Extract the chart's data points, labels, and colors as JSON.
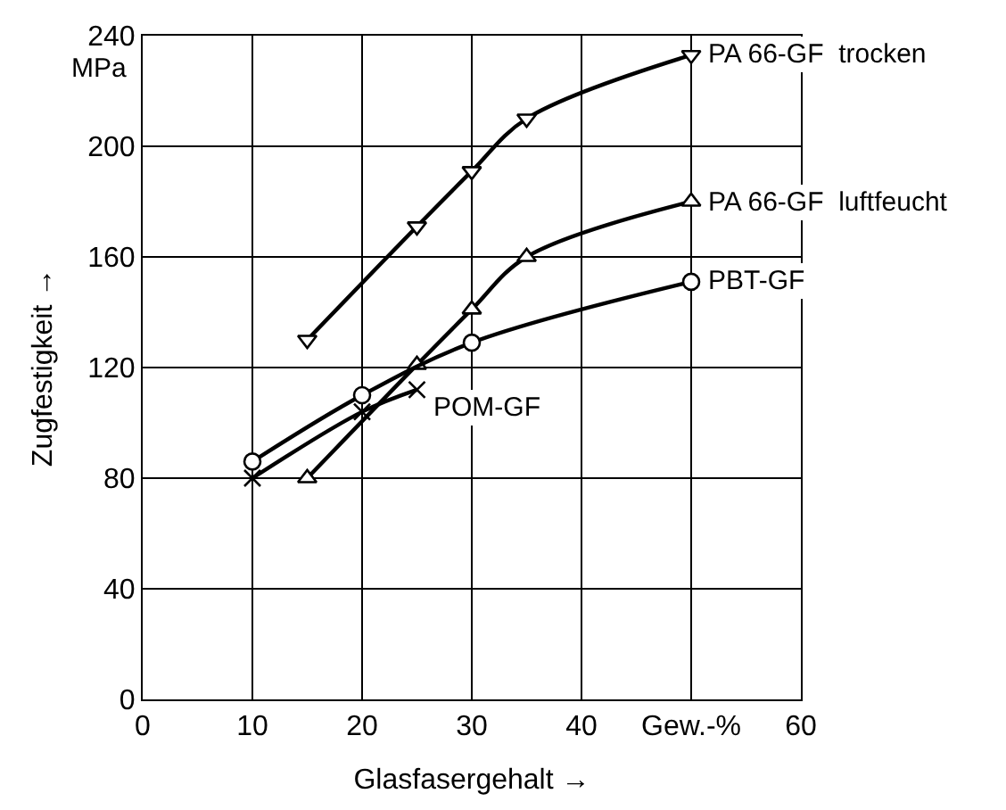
{
  "chart_data": {
    "type": "line",
    "xlabel": "Glasfasergehalt →",
    "ylabel": "Zugfestigkeit →",
    "xlim": [
      0,
      60
    ],
    "xticks": [
      0,
      10,
      20,
      30,
      40,
      {
        "value": 50,
        "label": "Gew.-%"
      },
      60
    ],
    "ylim": [
      0,
      240
    ],
    "yticks": [
      0,
      40,
      80,
      120,
      160,
      200,
      240
    ],
    "grid": true,
    "legend": false,
    "annotations": [
      "MPa"
    ],
    "series": [
      {
        "name": "PA 66-GF  trocken",
        "color": "#000000",
        "marker": "triangle-down",
        "x": [
          15,
          25,
          30,
          35,
          50
        ],
        "values": [
          130,
          171,
          191,
          210,
          233
        ]
      },
      {
        "name": "PA 66-GF  luftfeucht",
        "color": "#000000",
        "marker": "triangle-up",
        "x": [
          15,
          25,
          30,
          35,
          50
        ],
        "values": [
          80,
          121,
          141,
          160,
          180
        ]
      },
      {
        "name": "PBT-GF",
        "color": "#000000",
        "marker": "circle",
        "x": [
          10,
          20,
          30,
          50
        ],
        "values": [
          86,
          110,
          129,
          151
        ]
      },
      {
        "name": "POM-GF",
        "color": "#000000",
        "marker": "cross",
        "x": [
          10,
          20,
          25
        ],
        "values": [
          80,
          104,
          112
        ]
      }
    ]
  }
}
